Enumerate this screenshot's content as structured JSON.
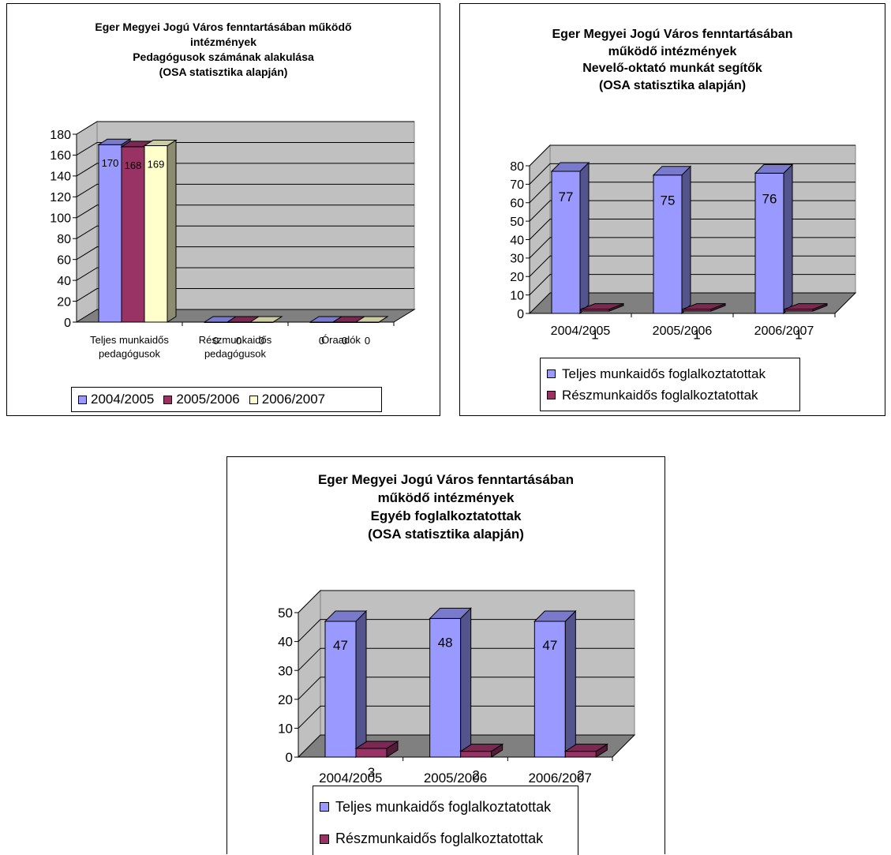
{
  "charts": [
    {
      "title_lines": [
        "Eger Megyei Jogú Város fenntartásában működő",
        "intézmények",
        "Pedagógusok számának alakulása",
        "(OSA statisztika alapján)"
      ]
    },
    {
      "title_lines": [
        "Eger Megyei Jogú Város fenntartásában",
        "működő intézmények",
        "Nevelő-oktató munkát segítők",
        "(OSA statisztika alapján)"
      ]
    },
    {
      "title_lines": [
        "Eger Megyei Jogú Város fenntartásában",
        "működő intézmények",
        "Egyéb foglalkoztatottak",
        "(OSA statisztika alapján)"
      ]
    }
  ],
  "colors": {
    "periwinkle": "#9999ff",
    "plum": "#993366",
    "ivory": "#ffffcc",
    "wall": "#c0c0c0",
    "floor": "#808080"
  },
  "chart_data": [
    {
      "type": "bar",
      "title": "Eger Megyei Jogú Város fenntartásában működő intézmények Pedagógusok számának alakulása (OSA statisztika alapján)",
      "categories": [
        "Teljes munkaidős pedagógusok",
        "Részmunkaidős pedagógusok",
        "Óraadók"
      ],
      "category_lines": [
        [
          "Teljes munkaidős",
          "pedagógusok"
        ],
        [
          "Részmunkaidős",
          "pedagógusok"
        ],
        [
          "Óraadók"
        ]
      ],
      "series": [
        {
          "name": "2004/2005",
          "values": [
            170,
            0,
            0
          ],
          "color": "#9999ff"
        },
        {
          "name": "2005/2006",
          "values": [
            168,
            0,
            0
          ],
          "color": "#993366"
        },
        {
          "name": "2006/2007",
          "values": [
            169,
            0,
            0
          ],
          "color": "#ffffcc"
        }
      ],
      "ylim": [
        0,
        180
      ],
      "yticks": [
        0,
        20,
        40,
        60,
        80,
        100,
        120,
        140,
        160,
        180
      ],
      "legend": "bottom",
      "grid": true
    },
    {
      "type": "bar",
      "title": "Eger Megyei Jogú Város fenntartásában működő intézmények Nevelő-oktató munkát segítők (OSA statisztika alapján)",
      "categories": [
        "2004/2005",
        "2005/2006",
        "2006/2007"
      ],
      "category_lines": [
        [
          "2004/2005"
        ],
        [
          "2005/2006"
        ],
        [
          "2006/2007"
        ]
      ],
      "series": [
        {
          "name": "Teljes munkaidős foglalkoztatottak",
          "values": [
            77,
            75,
            76
          ],
          "color": "#9999ff"
        },
        {
          "name": "Részmunkaidős foglalkoztatottak",
          "values": [
            1,
            1,
            1
          ],
          "color": "#993366"
        }
      ],
      "ylim": [
        0,
        80
      ],
      "yticks": [
        0,
        10,
        20,
        30,
        40,
        50,
        60,
        70,
        80
      ],
      "legend": "bottom",
      "grid": true
    },
    {
      "type": "bar",
      "title": "Eger Megyei Jogú Város fenntartásában működő intézmények Egyéb foglalkoztatottak (OSA statisztika alapján)",
      "categories": [
        "2004/2005",
        "2005/2006",
        "2006/2007"
      ],
      "category_lines": [
        [
          "2004/2005"
        ],
        [
          "2005/2006"
        ],
        [
          "2006/2007"
        ]
      ],
      "series": [
        {
          "name": "Teljes munkaidős foglalkoztatottak",
          "values": [
            47,
            48,
            47
          ],
          "color": "#9999ff"
        },
        {
          "name": "Részmunkaidős foglalkoztatottak",
          "values": [
            3,
            2,
            2
          ],
          "color": "#993366"
        }
      ],
      "ylim": [
        0,
        50
      ],
      "yticks": [
        0,
        10,
        20,
        30,
        40,
        50
      ],
      "legend": "bottom",
      "grid": true
    }
  ]
}
